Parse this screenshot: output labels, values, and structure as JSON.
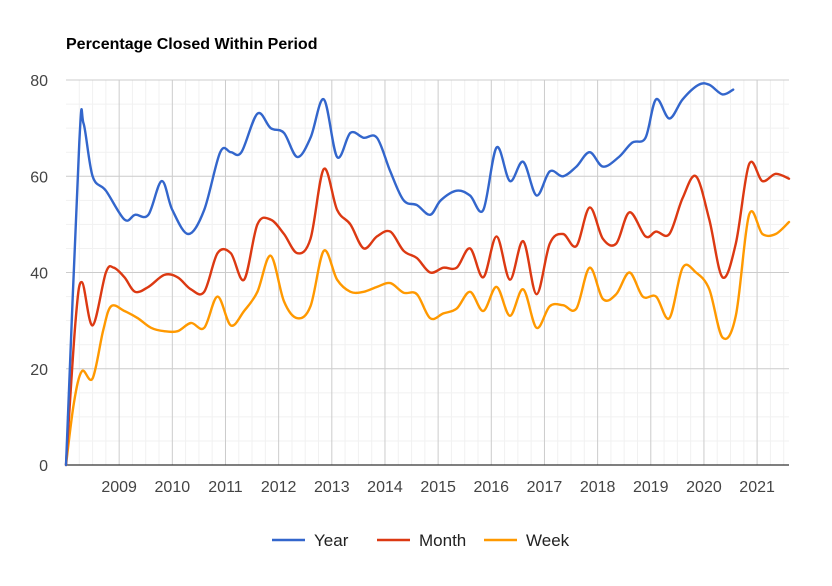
{
  "chart_data": {
    "type": "line",
    "title": "Percentage Closed Within Period",
    "xlabel": "",
    "ylabel": "",
    "ylim": [
      0,
      80
    ],
    "xlim": [
      2008.0,
      2021.6
    ],
    "y_ticks": [
      0,
      20,
      40,
      60,
      80
    ],
    "x_ticks": [
      2009,
      2010,
      2011,
      2012,
      2013,
      2014,
      2015,
      2016,
      2017,
      2018,
      2019,
      2020,
      2021
    ],
    "x_tick_labels": [
      "2009",
      "2010",
      "2011",
      "2012",
      "2013",
      "2014",
      "2015",
      "2016",
      "2017",
      "2018",
      "2019",
      "2020",
      "2021"
    ],
    "grid": true,
    "legend_position": "bottom",
    "series": [
      {
        "name": "Year",
        "color": "#3366cc",
        "points": [
          [
            2008.0,
            0
          ],
          [
            2008.25,
            67
          ],
          [
            2008.33,
            71
          ],
          [
            2008.5,
            60
          ],
          [
            2008.75,
            57
          ],
          [
            2009.1,
            51
          ],
          [
            2009.3,
            52
          ],
          [
            2009.55,
            52
          ],
          [
            2009.8,
            59
          ],
          [
            2010.0,
            53
          ],
          [
            2010.3,
            48
          ],
          [
            2010.6,
            53
          ],
          [
            2010.9,
            65
          ],
          [
            2011.1,
            65
          ],
          [
            2011.3,
            65
          ],
          [
            2011.6,
            73
          ],
          [
            2011.85,
            70
          ],
          [
            2012.1,
            69
          ],
          [
            2012.35,
            64
          ],
          [
            2012.6,
            68
          ],
          [
            2012.85,
            76
          ],
          [
            2013.1,
            64
          ],
          [
            2013.35,
            69
          ],
          [
            2013.6,
            68
          ],
          [
            2013.85,
            68
          ],
          [
            2014.1,
            61
          ],
          [
            2014.35,
            55
          ],
          [
            2014.6,
            54
          ],
          [
            2014.85,
            52
          ],
          [
            2015.05,
            55
          ],
          [
            2015.35,
            57
          ],
          [
            2015.6,
            56
          ],
          [
            2015.85,
            53
          ],
          [
            2016.1,
            66
          ],
          [
            2016.35,
            59
          ],
          [
            2016.6,
            63
          ],
          [
            2016.85,
            56
          ],
          [
            2017.1,
            61
          ],
          [
            2017.35,
            60
          ],
          [
            2017.6,
            62
          ],
          [
            2017.85,
            65
          ],
          [
            2018.1,
            62
          ],
          [
            2018.4,
            64
          ],
          [
            2018.65,
            67
          ],
          [
            2018.9,
            68
          ],
          [
            2019.1,
            76
          ],
          [
            2019.35,
            72
          ],
          [
            2019.6,
            76
          ],
          [
            2019.9,
            79
          ],
          [
            2020.1,
            79
          ],
          [
            2020.35,
            77
          ],
          [
            2020.55,
            78
          ]
        ]
      },
      {
        "name": "Month",
        "color": "#dc3912",
        "points": [
          [
            2008.0,
            0
          ],
          [
            2008.18,
            30
          ],
          [
            2008.3,
            38
          ],
          [
            2008.5,
            29
          ],
          [
            2008.75,
            40
          ],
          [
            2008.9,
            41
          ],
          [
            2009.1,
            39
          ],
          [
            2009.3,
            36
          ],
          [
            2009.55,
            37
          ],
          [
            2009.85,
            39.5
          ],
          [
            2010.1,
            39
          ],
          [
            2010.35,
            36.5
          ],
          [
            2010.6,
            36
          ],
          [
            2010.85,
            44
          ],
          [
            2011.1,
            44
          ],
          [
            2011.35,
            38.5
          ],
          [
            2011.6,
            50
          ],
          [
            2011.85,
            51
          ],
          [
            2012.1,
            48
          ],
          [
            2012.35,
            44
          ],
          [
            2012.6,
            47
          ],
          [
            2012.85,
            61.5
          ],
          [
            2013.1,
            53
          ],
          [
            2013.35,
            50
          ],
          [
            2013.6,
            45
          ],
          [
            2013.85,
            47.5
          ],
          [
            2014.1,
            48.5
          ],
          [
            2014.35,
            44.5
          ],
          [
            2014.6,
            43
          ],
          [
            2014.85,
            40
          ],
          [
            2015.1,
            41
          ],
          [
            2015.35,
            41
          ],
          [
            2015.6,
            45
          ],
          [
            2015.85,
            39
          ],
          [
            2016.1,
            47.5
          ],
          [
            2016.35,
            38.5
          ],
          [
            2016.6,
            46.5
          ],
          [
            2016.85,
            35.5
          ],
          [
            2017.1,
            46
          ],
          [
            2017.35,
            48
          ],
          [
            2017.6,
            45.5
          ],
          [
            2017.85,
            53.5
          ],
          [
            2018.1,
            47
          ],
          [
            2018.35,
            46
          ],
          [
            2018.6,
            52.5
          ],
          [
            2018.9,
            47.5
          ],
          [
            2019.1,
            48.5
          ],
          [
            2019.35,
            48
          ],
          [
            2019.6,
            55.5
          ],
          [
            2019.85,
            60
          ],
          [
            2020.1,
            51
          ],
          [
            2020.35,
            39
          ],
          [
            2020.6,
            46
          ],
          [
            2020.85,
            62.5
          ],
          [
            2021.1,
            59
          ],
          [
            2021.35,
            60.5
          ],
          [
            2021.6,
            59.5
          ]
        ]
      },
      {
        "name": "Week",
        "color": "#ff9900",
        "points": [
          [
            2008.0,
            0
          ],
          [
            2008.15,
            13
          ],
          [
            2008.3,
            19.5
          ],
          [
            2008.5,
            18
          ],
          [
            2008.7,
            28
          ],
          [
            2008.85,
            33
          ],
          [
            2009.1,
            32
          ],
          [
            2009.35,
            30.5
          ],
          [
            2009.6,
            28.5
          ],
          [
            2009.85,
            27.8
          ],
          [
            2010.1,
            27.8
          ],
          [
            2010.35,
            29.5
          ],
          [
            2010.6,
            28.5
          ],
          [
            2010.85,
            35
          ],
          [
            2011.1,
            29
          ],
          [
            2011.35,
            32
          ],
          [
            2011.6,
            36
          ],
          [
            2011.85,
            43.5
          ],
          [
            2012.1,
            34
          ],
          [
            2012.35,
            30.5
          ],
          [
            2012.6,
            33
          ],
          [
            2012.85,
            44.5
          ],
          [
            2013.1,
            38.5
          ],
          [
            2013.35,
            36
          ],
          [
            2013.6,
            36
          ],
          [
            2013.85,
            37
          ],
          [
            2014.1,
            37.8
          ],
          [
            2014.35,
            35.8
          ],
          [
            2014.6,
            35.5
          ],
          [
            2014.85,
            30.5
          ],
          [
            2015.1,
            31.5
          ],
          [
            2015.35,
            32.5
          ],
          [
            2015.6,
            36
          ],
          [
            2015.85,
            32
          ],
          [
            2016.1,
            37
          ],
          [
            2016.35,
            31
          ],
          [
            2016.6,
            36.5
          ],
          [
            2016.85,
            28.5
          ],
          [
            2017.1,
            33
          ],
          [
            2017.35,
            33.2
          ],
          [
            2017.6,
            32.5
          ],
          [
            2017.85,
            41
          ],
          [
            2018.1,
            34.5
          ],
          [
            2018.35,
            35.5
          ],
          [
            2018.6,
            40
          ],
          [
            2018.85,
            35
          ],
          [
            2019.1,
            35
          ],
          [
            2019.35,
            30.5
          ],
          [
            2019.6,
            41
          ],
          [
            2019.85,
            40
          ],
          [
            2020.1,
            36.5
          ],
          [
            2020.35,
            26.5
          ],
          [
            2020.6,
            31
          ],
          [
            2020.85,
            52
          ],
          [
            2021.1,
            48
          ],
          [
            2021.35,
            48
          ],
          [
            2021.6,
            50.5
          ]
        ]
      }
    ]
  }
}
